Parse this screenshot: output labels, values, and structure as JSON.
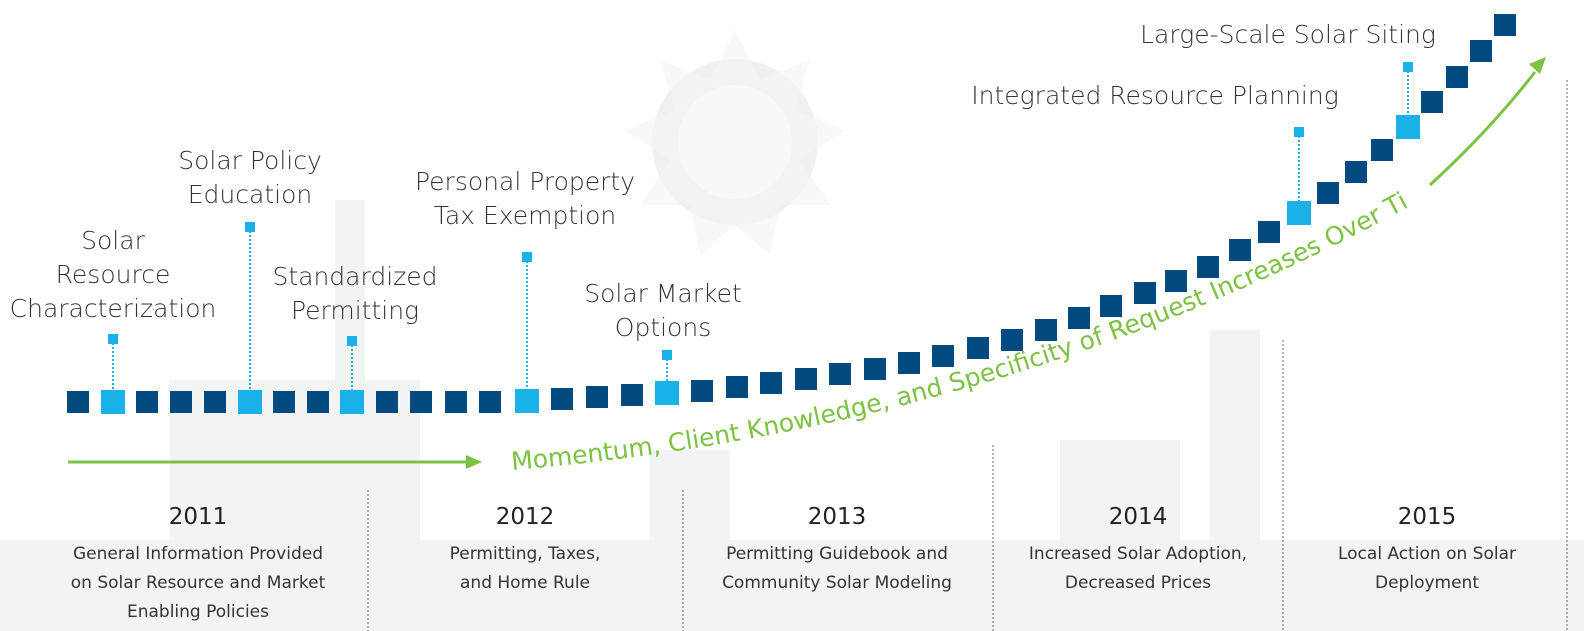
{
  "milestones": [
    {
      "lines": [
        "Solar",
        "Resource",
        "Characterization"
      ]
    },
    {
      "lines": [
        "Solar Policy",
        "Education"
      ]
    },
    {
      "lines": [
        "Standardized",
        "Permitting"
      ]
    },
    {
      "lines": [
        "Personal Property",
        "Tax Exemption"
      ]
    },
    {
      "lines": [
        "Solar Market",
        "Options"
      ]
    },
    {
      "lines": [
        "Integrated Resource Planning"
      ]
    },
    {
      "lines": [
        "Large-Scale Solar Siting"
      ]
    }
  ],
  "momentum": "Momentum, Client Knowledge, and Specificity of Request Increases Over Time",
  "years": [
    {
      "year": "2011",
      "lines": [
        "General Information Provided",
        "on Solar Resource and Market",
        "Enabling Policies"
      ]
    },
    {
      "year": "2012",
      "lines": [
        "Permitting, Taxes,",
        "and Home Rule"
      ]
    },
    {
      "year": "2013",
      "lines": [
        "Permitting Guidebook and",
        "Community Solar Modeling"
      ]
    },
    {
      "year": "2014",
      "lines": [
        "Increased Solar Adoption,",
        "Decreased Prices"
      ]
    },
    {
      "year": "2015",
      "lines": [
        "Local Action on Solar",
        "Deployment"
      ]
    }
  ]
}
